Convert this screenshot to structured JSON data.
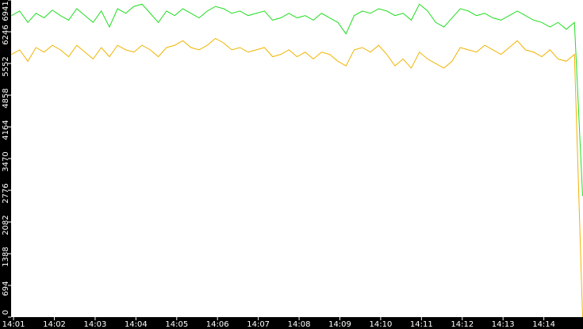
{
  "chart_data": {
    "type": "line",
    "x": [
      0.95,
      1.15,
      1.35,
      1.55,
      1.75,
      1.95,
      2.15,
      2.35,
      2.55,
      2.75,
      2.95,
      3.15,
      3.35,
      3.55,
      3.75,
      3.95,
      4.15,
      4.35,
      4.55,
      4.75,
      4.95,
      5.15,
      5.35,
      5.55,
      5.75,
      5.95,
      6.15,
      6.35,
      6.55,
      6.75,
      6.95,
      7.15,
      7.35,
      7.55,
      7.75,
      7.95,
      8.15,
      8.35,
      8.55,
      8.75,
      8.95,
      9.15,
      9.35,
      9.55,
      9.75,
      9.95,
      10.15,
      10.35,
      10.55,
      10.75,
      10.95,
      11.15,
      11.35,
      11.55,
      11.75,
      11.95,
      12.15,
      12.35,
      12.55,
      12.75,
      12.95,
      13.15,
      13.35,
      13.55,
      13.75,
      13.95,
      14.15,
      14.35,
      14.55,
      14.75,
      14.95
    ],
    "series": [
      {
        "color": "#22dd22",
        "values": [
          6600,
          6700,
          6450,
          6650,
          6550,
          6720,
          6600,
          6500,
          6750,
          6600,
          6450,
          6700,
          6350,
          6750,
          6650,
          6800,
          6850,
          6650,
          6450,
          6700,
          6600,
          6750,
          6650,
          6550,
          6700,
          6800,
          6750,
          6650,
          6700,
          6600,
          6650,
          6700,
          6500,
          6550,
          6650,
          6550,
          6600,
          6500,
          6650,
          6550,
          6450,
          6200,
          6600,
          6700,
          6650,
          6750,
          6700,
          6600,
          6650,
          6500,
          6850,
          6700,
          6450,
          6350,
          6550,
          6750,
          6700,
          6600,
          6650,
          6550,
          6500,
          6600,
          6700,
          6600,
          6500,
          6450,
          6350,
          6450,
          6300,
          6450,
          2650
        ]
      },
      {
        "color": "#f0b400",
        "values": [
          5750,
          5850,
          5600,
          5900,
          5800,
          5950,
          5850,
          5700,
          5950,
          5800,
          5650,
          5900,
          5700,
          5950,
          5850,
          5800,
          5950,
          5850,
          5700,
          5900,
          5950,
          6050,
          5900,
          5850,
          5950,
          6100,
          6000,
          5850,
          5900,
          5800,
          5850,
          5900,
          5700,
          5750,
          5850,
          5700,
          5800,
          5650,
          5800,
          5750,
          5600,
          5500,
          5850,
          5900,
          5800,
          5950,
          5750,
          5500,
          5650,
          5450,
          5800,
          5650,
          5550,
          5450,
          5600,
          5900,
          5850,
          5800,
          5950,
          5850,
          5750,
          5900,
          6050,
          5850,
          5800,
          5700,
          5850,
          5650,
          5600,
          5750,
          0
        ]
      }
    ],
    "xlim": [
      0.94,
      14.96
    ],
    "xticks": [
      {
        "value": 1,
        "label": "14:01"
      },
      {
        "value": 2,
        "label": "14:02"
      },
      {
        "value": 3,
        "label": "14:03"
      },
      {
        "value": 4,
        "label": "14:04"
      },
      {
        "value": 5,
        "label": "14:05"
      },
      {
        "value": 6,
        "label": "14:06"
      },
      {
        "value": 7,
        "label": "14:07"
      },
      {
        "value": 8,
        "label": "14:08"
      },
      {
        "value": 9,
        "label": "14:09"
      },
      {
        "value": 10,
        "label": "14:10"
      },
      {
        "value": 11,
        "label": "14:11"
      },
      {
        "value": 12,
        "label": "14:12"
      },
      {
        "value": 13,
        "label": "14:13"
      },
      {
        "value": 14,
        "label": "14:14"
      }
    ],
    "ylim": [
      0,
      6941
    ],
    "yticks": [
      0,
      694,
      1388,
      2082,
      2776,
      3470,
      4164,
      4858,
      5552,
      6246,
      6941
    ]
  }
}
